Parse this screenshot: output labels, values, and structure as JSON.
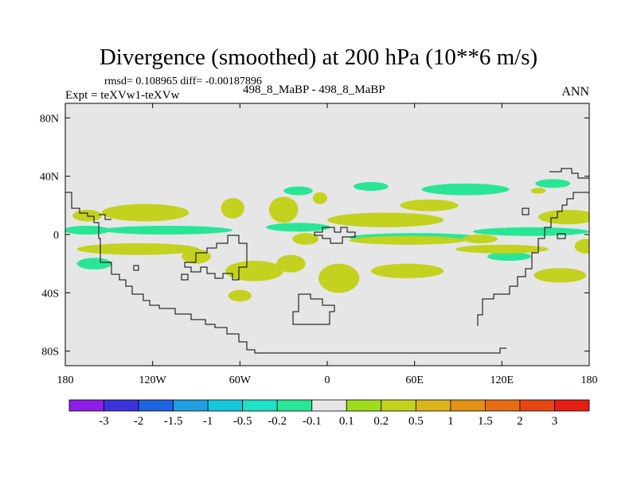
{
  "chart_data": {
    "type": "heatmap",
    "title": "Divergence (smoothed) at 200 hPa (10**6 m/s)",
    "stats_line": "rmsd= 0.108965 diff= -0.00187896",
    "left_string": "Expt = teXVw1-teXVw",
    "center_string": "498_8_MaBP - 498_8_MaBP",
    "right_string": "ANN",
    "x_range": [
      -180,
      180
    ],
    "y_range": [
      -90,
      90
    ],
    "x_ticks": [
      {
        "value": -180,
        "label": "180"
      },
      {
        "value": -120,
        "label": "120W"
      },
      {
        "value": -60,
        "label": "60W"
      },
      {
        "value": 0,
        "label": "0"
      },
      {
        "value": 60,
        "label": "60E"
      },
      {
        "value": 120,
        "label": "120E"
      },
      {
        "value": 180,
        "label": "180"
      }
    ],
    "y_ticks": [
      {
        "value": 80,
        "label": "80N"
      },
      {
        "value": 40,
        "label": "40N"
      },
      {
        "value": 0,
        "label": "0"
      },
      {
        "value": -40,
        "label": "40S"
      },
      {
        "value": -80,
        "label": "80S"
      }
    ],
    "colorbar": {
      "colors": [
        "#8c1ee6",
        "#3c32dc",
        "#1e64e1",
        "#1ea0e1",
        "#14c8dc",
        "#1ee1c8",
        "#28e696",
        "#e6e6e6",
        "#a0dc1e",
        "#c3d21e",
        "#dcb41e",
        "#e19114",
        "#e66e14",
        "#e64614",
        "#e61e14"
      ],
      "levels": [
        "-3",
        "-2",
        "-1.5",
        "-1",
        "-0.5",
        "-0.2",
        "-0.1",
        "0.1",
        "0.2",
        "0.5",
        "1",
        "1.5",
        "2",
        "3"
      ]
    },
    "features": [
      {
        "lon": -165,
        "lat": 3,
        "dlon": 16,
        "dlat": 3,
        "value": -0.15
      },
      {
        "lon": -110,
        "lat": 3,
        "dlon": 45,
        "dlat": 3,
        "value": -0.15
      },
      {
        "lon": -20,
        "lat": 5,
        "dlon": 22,
        "dlat": 3,
        "value": -0.15
      },
      {
        "lon": 60,
        "lat": -2,
        "dlon": 45,
        "dlat": 3,
        "value": -0.15
      },
      {
        "lon": 140,
        "lat": 2,
        "dlon": 40,
        "dlat": 3,
        "value": -0.15
      },
      {
        "lon": 95,
        "lat": 31,
        "dlon": 30,
        "dlat": 4,
        "value": -0.15
      },
      {
        "lon": 30,
        "lat": 33,
        "dlon": 12,
        "dlat": 3,
        "value": -0.15
      },
      {
        "lon": -20,
        "lat": 30,
        "dlon": 10,
        "dlat": 3,
        "value": -0.15
      },
      {
        "lon": 155,
        "lat": 35,
        "dlon": 12,
        "dlat": 3,
        "value": -0.15
      },
      {
        "lon": -160,
        "lat": -20,
        "dlon": 12,
        "dlat": 4,
        "value": -0.15
      },
      {
        "lon": 125,
        "lat": -15,
        "dlon": 15,
        "dlat": 3,
        "value": -0.15
      },
      {
        "lon": -125,
        "lat": 15,
        "dlon": 30,
        "dlat": 6,
        "value": 0.25
      },
      {
        "lon": -165,
        "lat": 13,
        "dlon": 10,
        "dlat": 4,
        "value": 0.25
      },
      {
        "lon": -130,
        "lat": -10,
        "dlon": 42,
        "dlat": 4,
        "value": 0.25
      },
      {
        "lon": -65,
        "lat": 18,
        "dlon": 8,
        "dlat": 7,
        "value": 0.25
      },
      {
        "lon": -30,
        "lat": 17,
        "dlon": 10,
        "dlat": 9,
        "value": 0.25
      },
      {
        "lon": -5,
        "lat": 25,
        "dlon": 5,
        "dlat": 4,
        "value": 0.25
      },
      {
        "lon": 40,
        "lat": 10,
        "dlon": 40,
        "dlat": 5,
        "value": 0.3
      },
      {
        "lon": 70,
        "lat": 20,
        "dlon": 20,
        "dlat": 4,
        "value": 0.25
      },
      {
        "lon": 55,
        "lat": -4,
        "dlon": 40,
        "dlat": 3,
        "value": 0.25
      },
      {
        "lon": 120,
        "lat": -10,
        "dlon": 32,
        "dlat": 3,
        "value": 0.25
      },
      {
        "lon": -50,
        "lat": -25,
        "dlon": 20,
        "dlat": 7,
        "value": 0.3
      },
      {
        "lon": -25,
        "lat": -20,
        "dlon": 10,
        "dlat": 6,
        "value": 0.25
      },
      {
        "lon": -15,
        "lat": -3,
        "dlon": 9,
        "dlat": 4,
        "value": 0.25
      },
      {
        "lon": 55,
        "lat": -25,
        "dlon": 25,
        "dlat": 5,
        "value": 0.3
      },
      {
        "lon": 8,
        "lat": -30,
        "dlon": 14,
        "dlat": 10,
        "value": 0.3
      },
      {
        "lon": -90,
        "lat": -15,
        "dlon": 10,
        "dlat": 5,
        "value": 0.25
      },
      {
        "lon": -60,
        "lat": -42,
        "dlon": 8,
        "dlat": 4,
        "value": 0.25
      },
      {
        "lon": 160,
        "lat": -28,
        "dlon": 18,
        "dlat": 5,
        "value": 0.25
      },
      {
        "lon": 165,
        "lat": 12,
        "dlon": 20,
        "dlat": 5,
        "value": 0.25
      },
      {
        "lon": 178,
        "lat": -8,
        "dlon": 8,
        "dlat": 5,
        "value": 0.25
      },
      {
        "lon": 145,
        "lat": 30,
        "dlon": 5,
        "dlat": 2,
        "value": 0.25
      },
      {
        "lon": 105,
        "lat": -3,
        "dlon": 12,
        "dlat": 3,
        "value": 0.25
      }
    ]
  }
}
